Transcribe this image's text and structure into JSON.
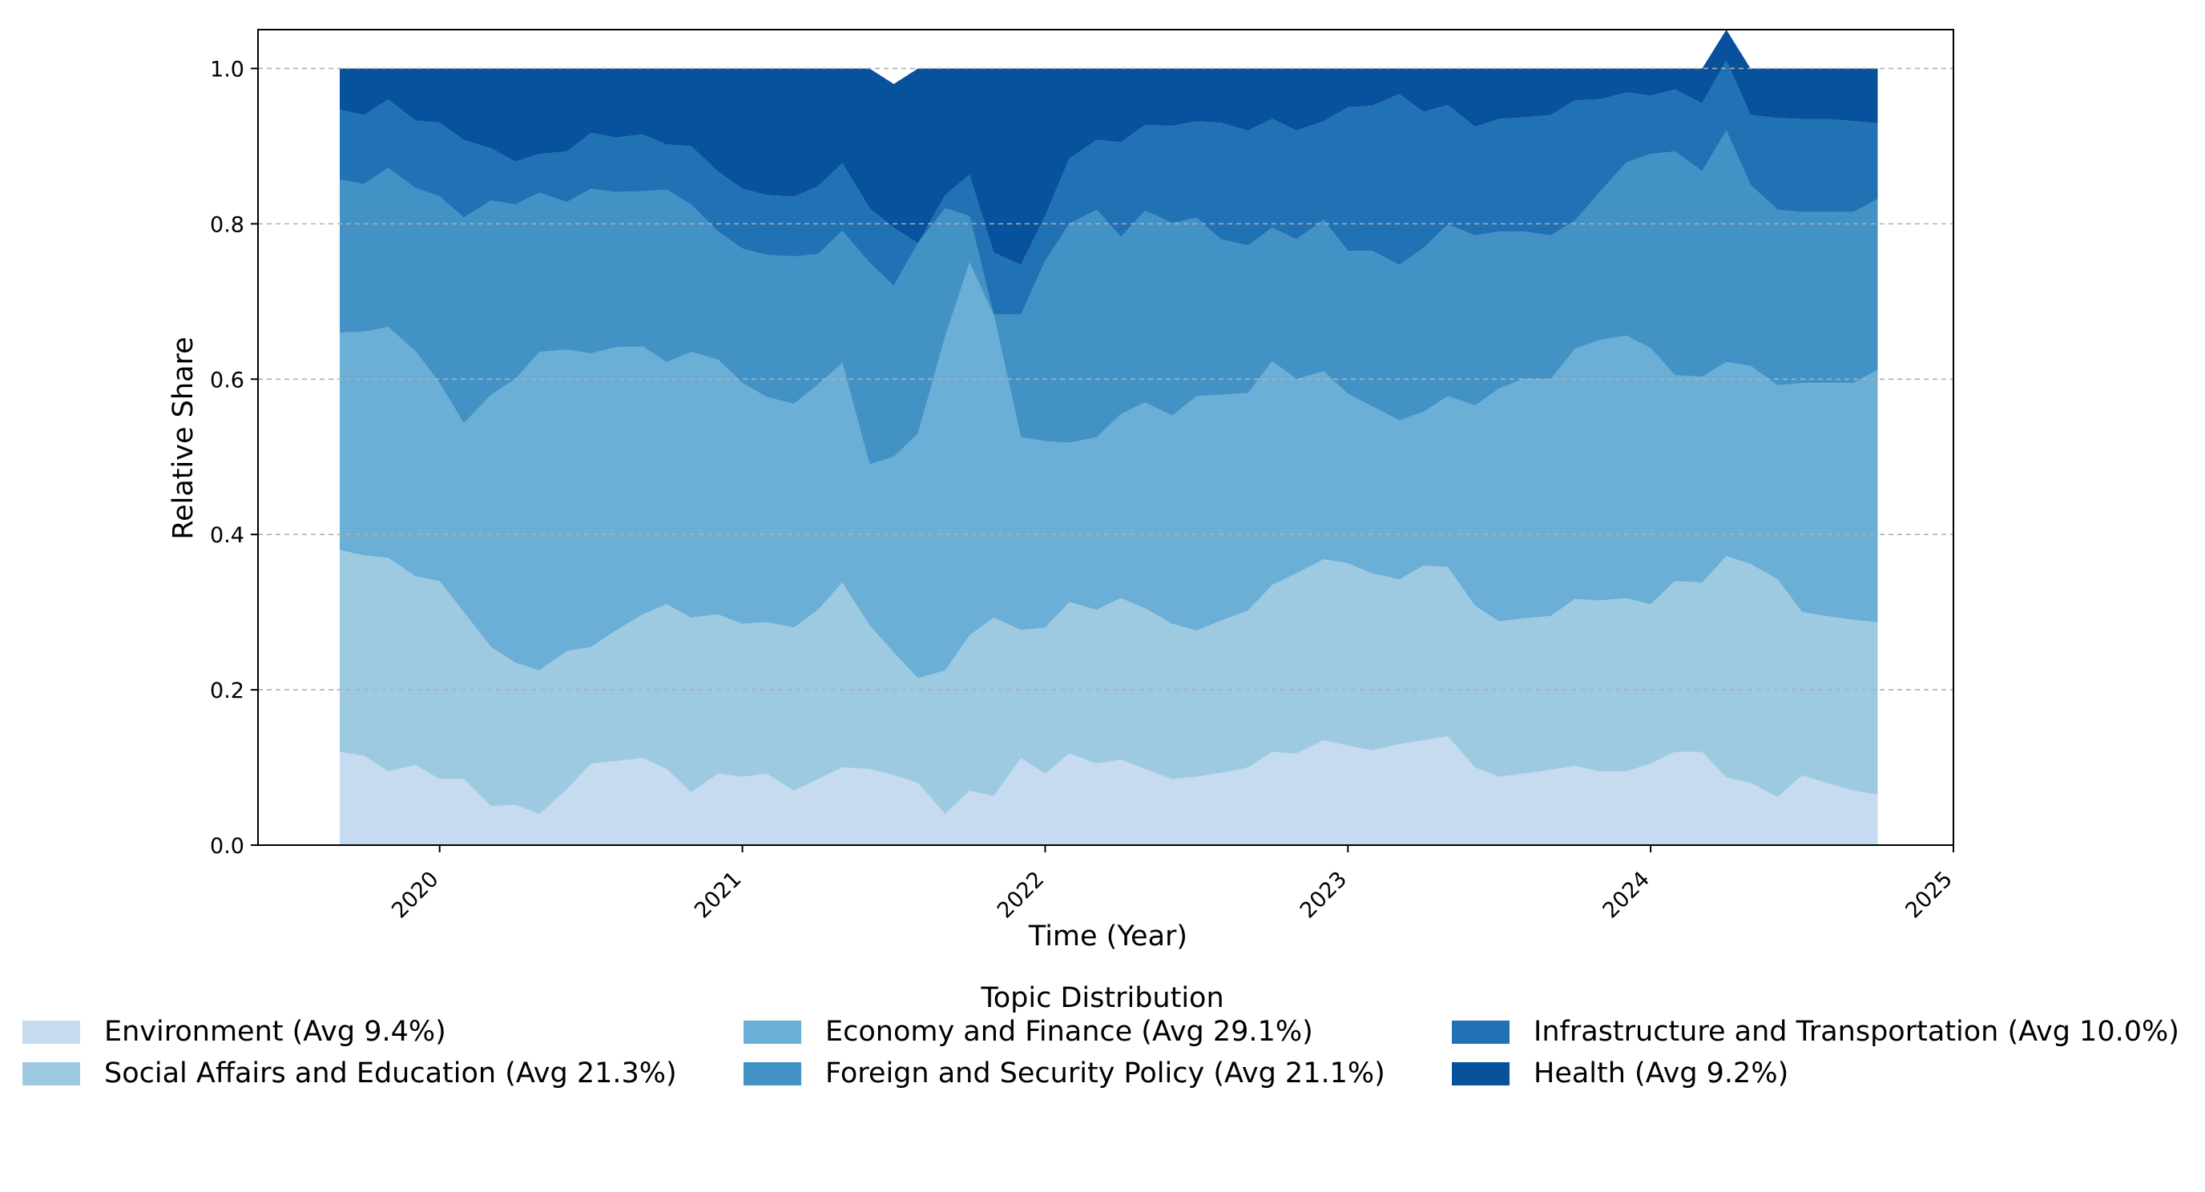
{
  "chart_data": {
    "type": "area",
    "stacked": true,
    "title": "",
    "xlabel": "Time (Year)",
    "ylabel": "Relative Share",
    "xlim": [
      2019.4,
      2025.0
    ],
    "ylim": [
      0.0,
      1.05
    ],
    "x_ticks": [
      2020,
      2021,
      2022,
      2023,
      2024,
      2025
    ],
    "x_tick_labels": [
      "2020",
      "2021",
      "2022",
      "2023",
      "2024",
      "2025"
    ],
    "y_ticks": [
      0.0,
      0.2,
      0.4,
      0.6,
      0.8,
      1.0
    ],
    "y_tick_labels": [
      "0.0",
      "0.2",
      "0.4",
      "0.6",
      "0.8",
      "1.0"
    ],
    "grid": "y-dashed",
    "legend_title": "Topic Distribution",
    "legend_position": "bottom-center",
    "x": [
      2019.67,
      2019.75,
      2019.83,
      2019.92,
      2020.0,
      2020.08,
      2020.17,
      2020.25,
      2020.33,
      2020.42,
      2020.5,
      2020.58,
      2020.67,
      2020.75,
      2020.83,
      2020.92,
      2021.0,
      2021.08,
      2021.17,
      2021.25,
      2021.33,
      2021.42,
      2021.5,
      2021.58,
      2021.67,
      2021.75,
      2021.83,
      2021.92,
      2022.0,
      2022.08,
      2022.17,
      2022.25,
      2022.33,
      2022.42,
      2022.5,
      2022.58,
      2022.67,
      2022.75,
      2022.83,
      2022.92,
      2023.0,
      2023.08,
      2023.17,
      2023.25,
      2023.33,
      2023.42,
      2023.5,
      2023.58,
      2023.67,
      2023.75,
      2023.83,
      2023.92,
      2024.0,
      2024.08,
      2024.17,
      2024.25,
      2024.33,
      2024.42,
      2024.5,
      2024.58,
      2024.67,
      2024.75
    ],
    "series": [
      {
        "name": "Environment",
        "legend_label": "Environment (Avg 9.4%)",
        "color": "#c6dbef",
        "values": [
          0.12,
          0.115,
          0.095,
          0.103,
          0.085,
          0.085,
          0.05,
          0.052,
          0.04,
          0.072,
          0.105,
          0.108,
          0.112,
          0.098,
          0.068,
          0.092,
          0.088,
          0.092,
          0.07,
          0.085,
          0.1,
          0.098,
          0.09,
          0.08,
          0.04,
          0.07,
          0.063,
          0.112,
          0.092,
          0.118,
          0.105,
          0.11,
          0.098,
          0.085,
          0.088,
          0.093,
          0.1,
          0.12,
          0.118,
          0.135,
          0.128,
          0.122,
          0.13,
          0.135,
          0.14,
          0.1,
          0.088,
          0.092,
          0.097,
          0.102,
          0.095,
          0.095,
          0.105,
          0.12,
          0.12,
          0.087,
          0.08,
          0.062,
          0.09,
          0.08,
          0.07,
          0.065
        ]
      },
      {
        "name": "Social Affairs and Education",
        "legend_label": "Social Affairs and Education (Avg 21.3%)",
        "color": "#9ecae1",
        "values": [
          0.26,
          0.258,
          0.275,
          0.243,
          0.255,
          0.215,
          0.205,
          0.183,
          0.185,
          0.178,
          0.15,
          0.168,
          0.185,
          0.212,
          0.225,
          0.205,
          0.197,
          0.195,
          0.21,
          0.218,
          0.238,
          0.185,
          0.158,
          0.135,
          0.185,
          0.2,
          0.23,
          0.165,
          0.188,
          0.195,
          0.198,
          0.208,
          0.207,
          0.2,
          0.188,
          0.196,
          0.202,
          0.215,
          0.232,
          0.233,
          0.235,
          0.228,
          0.212,
          0.225,
          0.218,
          0.208,
          0.2,
          0.2,
          0.198,
          0.215,
          0.22,
          0.223,
          0.205,
          0.22,
          0.218,
          0.285,
          0.282,
          0.28,
          0.21,
          0.215,
          0.22,
          0.222
        ]
      },
      {
        "name": "Economy and Finance",
        "legend_label": "Economy and Finance (Avg 29.1%)",
        "color": "#6baed6",
        "values": [
          0.28,
          0.288,
          0.297,
          0.29,
          0.255,
          0.243,
          0.325,
          0.365,
          0.41,
          0.388,
          0.378,
          0.365,
          0.345,
          0.312,
          0.342,
          0.328,
          0.31,
          0.29,
          0.288,
          0.29,
          0.283,
          0.207,
          0.252,
          0.315,
          0.43,
          0.48,
          0.39,
          0.248,
          0.24,
          0.205,
          0.222,
          0.237,
          0.265,
          0.268,
          0.302,
          0.291,
          0.28,
          0.288,
          0.25,
          0.242,
          0.218,
          0.215,
          0.205,
          0.198,
          0.22,
          0.258,
          0.3,
          0.308,
          0.305,
          0.322,
          0.335,
          0.338,
          0.33,
          0.265,
          0.265,
          0.25,
          0.255,
          0.25,
          0.295,
          0.3,
          0.305,
          0.325
        ]
      },
      {
        "name": "Foreign and Security Policy",
        "legend_label": "Foreign and Security Policy (Avg 21.1%)",
        "color": "#4292c6",
        "values": [
          0.197,
          0.19,
          0.205,
          0.21,
          0.24,
          0.265,
          0.25,
          0.225,
          0.205,
          0.19,
          0.212,
          0.2,
          0.2,
          0.222,
          0.19,
          0.165,
          0.173,
          0.183,
          0.19,
          0.168,
          0.17,
          0.26,
          0.22,
          0.245,
          0.165,
          0.06,
          0.0,
          0.158,
          0.232,
          0.282,
          0.293,
          0.228,
          0.247,
          0.248,
          0.23,
          0.2,
          0.19,
          0.172,
          0.18,
          0.195,
          0.184,
          0.2,
          0.2,
          0.211,
          0.221,
          0.219,
          0.202,
          0.19,
          0.185,
          0.165,
          0.19,
          0.223,
          0.25,
          0.288,
          0.265,
          0.298,
          0.233,
          0.226,
          0.22,
          0.22,
          0.22,
          0.22
        ]
      },
      {
        "name": "Infrastructure and Transportation",
        "legend_label": "Infrastructure and Transportation (Avg 10.0%)",
        "color": "#2171b5",
        "values": [
          0.09,
          0.089,
          0.088,
          0.087,
          0.095,
          0.1,
          0.067,
          0.055,
          0.05,
          0.065,
          0.072,
          0.07,
          0.073,
          0.058,
          0.075,
          0.077,
          0.077,
          0.077,
          0.077,
          0.087,
          0.087,
          0.07,
          0.075,
          0.0,
          0.017,
          0.053,
          0.08,
          0.064,
          0.058,
          0.084,
          0.09,
          0.122,
          0.11,
          0.125,
          0.124,
          0.15,
          0.148,
          0.14,
          0.14,
          0.127,
          0.185,
          0.187,
          0.22,
          0.175,
          0.154,
          0.14,
          0.145,
          0.147,
          0.155,
          0.155,
          0.12,
          0.09,
          0.075,
          0.08,
          0.087,
          0.09,
          0.09,
          0.118,
          0.12,
          0.12,
          0.117,
          0.097
        ]
      },
      {
        "name": "Health",
        "legend_label": "Health (Avg 9.2%)",
        "color": "#08519c",
        "values": [
          0.053,
          0.06,
          0.04,
          0.067,
          0.07,
          0.092,
          0.103,
          0.12,
          0.11,
          0.107,
          0.083,
          0.089,
          0.085,
          0.098,
          0.1,
          0.133,
          0.155,
          0.163,
          0.165,
          0.152,
          0.122,
          0.18,
          0.185,
          0.225,
          0.163,
          0.137,
          0.237,
          0.253,
          0.19,
          0.116,
          0.092,
          0.095,
          0.073,
          0.074,
          0.068,
          0.07,
          0.08,
          0.065,
          0.08,
          0.068,
          0.05,
          0.048,
          0.033,
          0.056,
          0.047,
          0.075,
          0.065,
          0.063,
          0.06,
          0.041,
          0.04,
          0.031,
          0.035,
          0.027,
          0.045,
          0.04,
          0.06,
          0.064,
          0.065,
          0.065,
          0.068,
          0.071
        ]
      }
    ]
  }
}
